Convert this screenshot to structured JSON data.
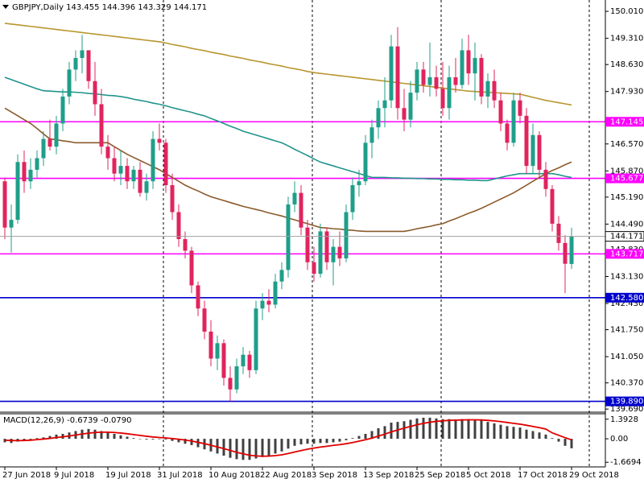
{
  "chart_data": [
    {
      "type": "candlestick",
      "title": "GBPJPY,Daily  143.455 144.396 143.329 144.171",
      "categories": [
        "27 Jun 2018",
        null,
        null,
        null,
        null,
        null,
        null,
        null,
        "9 Jul 2018",
        null,
        null,
        null,
        null,
        null,
        null,
        null,
        "19 Jul 2018",
        null,
        null,
        null,
        null,
        null,
        null,
        null,
        "31 Jul 2018",
        null,
        null,
        null,
        null,
        null,
        null,
        null,
        "10 Aug 2018",
        null,
        null,
        null,
        null,
        null,
        null,
        null,
        "22 Aug 2018",
        null,
        null,
        null,
        null,
        null,
        null,
        null,
        "3 Sep 2018",
        null,
        null,
        null,
        null,
        null,
        null,
        null,
        "13 Sep 2018",
        null,
        null,
        null,
        null,
        null,
        null,
        null,
        "25 Sep 2018",
        null,
        null,
        null,
        null,
        null,
        null,
        null,
        "5 Oct 2018",
        null,
        null,
        null,
        null,
        null,
        null,
        null,
        "17 Oct 2018",
        null,
        null,
        null,
        null,
        null,
        null,
        null,
        "29 Oct 2018"
      ],
      "open": [
        145.6,
        144.4,
        144.6,
        146.1,
        145.6,
        145.9,
        146.2,
        146.7,
        146.5,
        147.1,
        147.8,
        148.5,
        148.8,
        149.0,
        148.2,
        147.6,
        146.5,
        146.2,
        145.8,
        146.0,
        145.6,
        145.9,
        145.3,
        145.6,
        146.7,
        146.6,
        145.5,
        144.8,
        144.1,
        143.8,
        142.9,
        142.3,
        141.7,
        141.0,
        141.4,
        140.5,
        140.2,
        140.8,
        141.1,
        140.7,
        142.3,
        142.5,
        142.4,
        143.0,
        143.3,
        145.0,
        145.3,
        144.4,
        143.5,
        143.2,
        144.3,
        143.5,
        143.9,
        143.6,
        144.8,
        145.5,
        145.6,
        146.6,
        147.0,
        147.5,
        147.7,
        149.1,
        147.5,
        147.2,
        147.9,
        148.5,
        148.1,
        148.3,
        148.0,
        147.5,
        148.3,
        148.1,
        149.0,
        148.4,
        148.8,
        147.8,
        148.2,
        147.7,
        147.1,
        146.6,
        147.7,
        147.3,
        146.0,
        146.8,
        145.9,
        145.4,
        144.5,
        144.0,
        143.455
      ],
      "high": [
        145.7,
        145.0,
        146.3,
        146.4,
        146.2,
        146.4,
        146.9,
        147.2,
        147.3,
        148.0,
        148.7,
        149.0,
        149.4,
        149.0,
        148.7,
        148.0,
        146.8,
        146.5,
        146.4,
        146.2,
        146.0,
        146.1,
        145.8,
        146.9,
        147.1,
        146.7,
        145.8,
        145.0,
        144.3,
        143.9,
        143.0,
        142.5,
        142.0,
        141.6,
        141.5,
        140.8,
        141.0,
        141.3,
        141.2,
        142.5,
        142.7,
        142.8,
        143.2,
        143.5,
        145.2,
        145.6,
        145.5,
        144.6,
        143.9,
        144.5,
        144.4,
        144.1,
        144.3,
        145.0,
        145.7,
        145.9,
        146.8,
        147.2,
        147.7,
        148.3,
        149.4,
        149.6,
        148.0,
        148.2,
        148.7,
        148.7,
        149.2,
        148.6,
        148.7,
        148.6,
        148.8,
        149.3,
        149.4,
        149.2,
        148.9,
        148.4,
        148.5,
        147.9,
        147.2,
        147.9,
        147.9,
        147.5,
        147.1,
        146.9,
        146.1,
        145.5,
        144.7,
        144.2,
        144.396
      ],
      "low": [
        144.1,
        143.75,
        144.5,
        145.3,
        145.4,
        145.7,
        146.0,
        146.4,
        146.3,
        146.9,
        147.6,
        148.2,
        148.4,
        148.0,
        147.3,
        146.3,
        145.9,
        145.6,
        145.5,
        145.4,
        145.4,
        145.2,
        145.1,
        145.4,
        146.4,
        145.3,
        144.6,
        143.9,
        143.6,
        142.7,
        142.1,
        141.5,
        140.8,
        140.7,
        140.3,
        139.89,
        140.1,
        140.6,
        140.5,
        140.6,
        142.0,
        142.2,
        142.3,
        142.8,
        143.1,
        144.8,
        144.2,
        143.3,
        143.0,
        143.1,
        143.3,
        142.9,
        143.4,
        143.5,
        144.6,
        145.2,
        145.5,
        146.2,
        146.7,
        147.0,
        147.5,
        147.2,
        146.9,
        147.0,
        147.7,
        147.9,
        147.8,
        147.8,
        147.3,
        147.2,
        147.9,
        148.0,
        148.1,
        147.7,
        147.6,
        147.5,
        147.5,
        146.9,
        146.4,
        146.5,
        147.1,
        145.8,
        145.8,
        145.7,
        145.2,
        144.3,
        143.8,
        142.7,
        143.329
      ],
      "close": [
        144.4,
        144.6,
        146.1,
        145.6,
        145.9,
        146.2,
        146.7,
        146.5,
        147.1,
        147.8,
        148.5,
        148.8,
        149.0,
        148.2,
        147.6,
        146.5,
        146.2,
        145.8,
        146.0,
        145.6,
        145.9,
        145.3,
        145.6,
        146.7,
        146.6,
        145.5,
        144.8,
        144.1,
        143.8,
        142.9,
        142.3,
        141.7,
        141.0,
        141.4,
        140.5,
        140.2,
        140.8,
        141.1,
        140.7,
        142.3,
        142.5,
        142.4,
        143.0,
        143.3,
        145.0,
        145.3,
        144.4,
        143.5,
        143.2,
        144.3,
        143.5,
        143.9,
        143.6,
        144.8,
        145.5,
        145.6,
        146.6,
        147.0,
        147.5,
        147.7,
        149.1,
        147.5,
        147.2,
        147.9,
        148.5,
        148.1,
        148.3,
        148.0,
        147.5,
        148.3,
        148.1,
        149.0,
        148.4,
        148.8,
        147.8,
        148.2,
        147.7,
        147.1,
        146.6,
        147.7,
        147.3,
        146.0,
        146.8,
        145.9,
        145.4,
        144.5,
        144.0,
        143.46,
        144.171
      ],
      "up_color": "#1f9e8a",
      "down_color": "#e0245e",
      "series": [
        {
          "color": "#b8962e",
          "values": [
            149.7,
            149.68,
            149.66,
            149.64,
            149.62,
            149.6,
            149.58,
            149.56,
            149.54,
            149.52,
            149.5,
            149.48,
            149.46,
            149.44,
            149.42,
            149.4,
            149.38,
            149.36,
            149.34,
            149.32,
            149.3,
            149.28,
            149.26,
            149.24,
            149.22,
            149.19,
            149.15,
            149.12,
            149.09,
            149.05,
            149.02,
            148.99,
            148.95,
            148.92,
            148.89,
            148.85,
            148.82,
            148.79,
            148.75,
            148.72,
            148.69,
            148.65,
            148.62,
            148.59,
            148.55,
            148.52,
            148.49,
            148.45,
            148.42,
            148.4,
            148.38,
            148.36,
            148.34,
            148.32,
            148.3,
            148.28,
            148.26,
            148.24,
            148.22,
            148.2,
            148.18,
            148.16,
            148.14,
            148.12,
            148.1,
            148.08,
            148.06,
            148.04,
            148.02,
            148.0,
            147.98,
            147.96,
            147.94,
            147.93,
            147.92,
            147.91,
            147.9,
            147.89,
            147.88,
            147.87,
            147.86,
            147.82,
            147.78,
            147.74,
            147.7,
            147.67,
            147.64,
            147.61,
            147.58
          ]
        },
        {
          "color": "#20948b",
          "values": [
            148.3,
            148.24,
            148.18,
            148.12,
            148.06,
            148.0,
            147.95,
            147.94,
            147.93,
            147.92,
            147.92,
            147.91,
            147.9,
            147.88,
            147.87,
            147.85,
            147.83,
            147.82,
            147.8,
            147.77,
            147.73,
            147.7,
            147.67,
            147.63,
            147.6,
            147.56,
            147.51,
            147.47,
            147.43,
            147.39,
            147.34,
            147.3,
            147.23,
            147.17,
            147.1,
            147.03,
            146.97,
            146.9,
            146.85,
            146.8,
            146.75,
            146.7,
            146.65,
            146.6,
            146.52,
            146.43,
            146.35,
            146.27,
            146.18,
            146.1,
            146.05,
            146.0,
            145.95,
            145.9,
            145.85,
            145.8,
            145.75,
            145.7,
            145.7,
            145.7,
            145.69,
            145.69,
            145.68,
            145.68,
            145.67,
            145.67,
            145.66,
            145.66,
            145.65,
            145.65,
            145.64,
            145.64,
            145.63,
            145.63,
            145.62,
            145.62,
            145.66,
            145.7,
            145.74,
            145.77,
            145.8,
            145.8,
            145.8,
            145.8,
            145.8,
            145.8,
            145.77,
            145.73,
            145.7
          ]
        },
        {
          "color": "#8b5a2b",
          "values": [
            147.5,
            147.4,
            147.3,
            147.2,
            147.1,
            146.97,
            146.83,
            146.7,
            146.68,
            146.65,
            146.63,
            146.6,
            146.6,
            146.6,
            146.6,
            146.6,
            146.6,
            146.5,
            146.4,
            146.3,
            146.22,
            146.14,
            146.06,
            145.98,
            145.9,
            145.8,
            145.7,
            145.6,
            145.5,
            145.42,
            145.35,
            145.27,
            145.2,
            145.15,
            145.1,
            145.05,
            145.0,
            144.95,
            144.91,
            144.87,
            144.83,
            144.78,
            144.74,
            144.7,
            144.65,
            144.6,
            144.55,
            144.5,
            144.45,
            144.4,
            144.39,
            144.37,
            144.36,
            144.34,
            144.33,
            144.31,
            144.3,
            144.3,
            144.3,
            144.3,
            144.3,
            144.3,
            144.3,
            144.33,
            144.37,
            144.4,
            144.43,
            144.47,
            144.5,
            144.57,
            144.63,
            144.7,
            144.77,
            144.83,
            144.9,
            144.98,
            145.06,
            145.14,
            145.22,
            145.3,
            145.4,
            145.5,
            145.6,
            145.7,
            145.8,
            145.88,
            145.95,
            146.03,
            146.1
          ]
        }
      ],
      "ylim": [
        139.61,
        150.2
      ],
      "yticks": [
        {
          "value": 150.01,
          "label": "150.010"
        },
        {
          "value": 149.31,
          "label": "149.310"
        },
        {
          "value": 148.63,
          "label": "148.630"
        },
        {
          "value": 147.93,
          "label": "147.930"
        },
        {
          "value": 146.57,
          "label": "146.570"
        },
        {
          "value": 145.87,
          "label": "145.870"
        },
        {
          "value": 145.19,
          "label": "145.190"
        },
        {
          "value": 144.49,
          "label": "144.490"
        },
        {
          "value": 143.83,
          "label": "143.830"
        },
        {
          "value": 143.13,
          "label": "143.130"
        },
        {
          "value": 142.43,
          "label": "142.430"
        },
        {
          "value": 141.75,
          "label": "141.750"
        },
        {
          "value": 141.05,
          "label": "141.050"
        },
        {
          "value": 140.37,
          "label": "140.370"
        },
        {
          "value": 139.69,
          "label": "139.690"
        }
      ],
      "levels": [
        {
          "value": 147.145,
          "color": "#ff00ff"
        },
        {
          "value": 145.677,
          "color": "#ff00ff"
        },
        {
          "value": 143.717,
          "color": "#ff00ff"
        },
        {
          "value": {
            "value": 142.58,
            "label": "142.580"
          },
          "color": "#0000cd"
        },
        {
          "value": {
            "value": 139.89,
            "label": "139.890"
          },
          "color": "#0000cd"
        }
      ],
      "last_price": {
        "value": 144.171,
        "color": "#a0a0a0"
      }
    },
    {
      "type": "macd",
      "title": "MACD(12,26,9) -0.6739 -0.0790",
      "histogram": {
        "color": "#404040",
        "values": [
          -0.25,
          -0.3,
          -0.2,
          -0.1,
          -0.05,
          0.05,
          0.1,
          0.2,
          0.3,
          0.35,
          0.45,
          0.55,
          0.65,
          0.7,
          0.65,
          0.55,
          0.45,
          0.35,
          0.25,
          0.15,
          0.05,
          0.0,
          -0.05,
          -0.05,
          0.0,
          -0.05,
          -0.15,
          -0.25,
          -0.35,
          -0.45,
          -0.6,
          -0.75,
          -0.9,
          -1.05,
          -1.2,
          -1.35,
          -1.45,
          -1.5,
          -1.5,
          -1.4,
          -1.3,
          -1.2,
          -1.05,
          -0.9,
          -0.7,
          -0.5,
          -0.4,
          -0.35,
          -0.35,
          -0.3,
          -0.3,
          -0.25,
          -0.2,
          -0.1,
          0.05,
          0.2,
          0.35,
          0.55,
          0.75,
          0.9,
          1.15,
          1.2,
          1.25,
          1.35,
          1.45,
          1.5,
          1.5,
          1.45,
          1.4,
          1.4,
          1.35,
          1.4,
          1.4,
          1.35,
          1.3,
          1.2,
          1.1,
          1.0,
          0.9,
          0.85,
          0.8,
          0.65,
          0.55,
          0.45,
          0.3,
          0.05,
          -0.2,
          -0.5,
          -0.6739
        ]
      },
      "signal": {
        "color": "#e00000",
        "values": [
          -0.1,
          -0.12,
          -0.13,
          -0.12,
          -0.1,
          -0.06,
          -0.02,
          0.03,
          0.09,
          0.14,
          0.2,
          0.27,
          0.34,
          0.4,
          0.45,
          0.47,
          0.47,
          0.45,
          0.41,
          0.36,
          0.3,
          0.24,
          0.18,
          0.13,
          0.09,
          0.06,
          0.02,
          -0.03,
          -0.09,
          -0.16,
          -0.25,
          -0.35,
          -0.46,
          -0.58,
          -0.7,
          -0.83,
          -0.96,
          -1.07,
          -1.17,
          -1.22,
          -1.24,
          -1.23,
          -1.2,
          -1.14,
          -1.05,
          -0.94,
          -0.84,
          -0.74,
          -0.66,
          -0.59,
          -0.53,
          -0.47,
          -0.42,
          -0.35,
          -0.27,
          -0.17,
          -0.07,
          0.05,
          0.19,
          0.33,
          0.49,
          0.63,
          0.76,
          0.88,
          1.0,
          1.1,
          1.18,
          1.24,
          1.28,
          1.31,
          1.33,
          1.34,
          1.35,
          1.35,
          1.34,
          1.31,
          1.27,
          1.22,
          1.16,
          1.1,
          1.04,
          0.96,
          0.88,
          0.79,
          0.69,
          0.42,
          0.25,
          0.08,
          -0.079
        ]
      },
      "ylim": [
        -2.0,
        1.78
      ],
      "yticks": [
        1.3928,
        {
          "value": 0,
          "label": "0.00"
        },
        -1.6694
      ]
    }
  ]
}
